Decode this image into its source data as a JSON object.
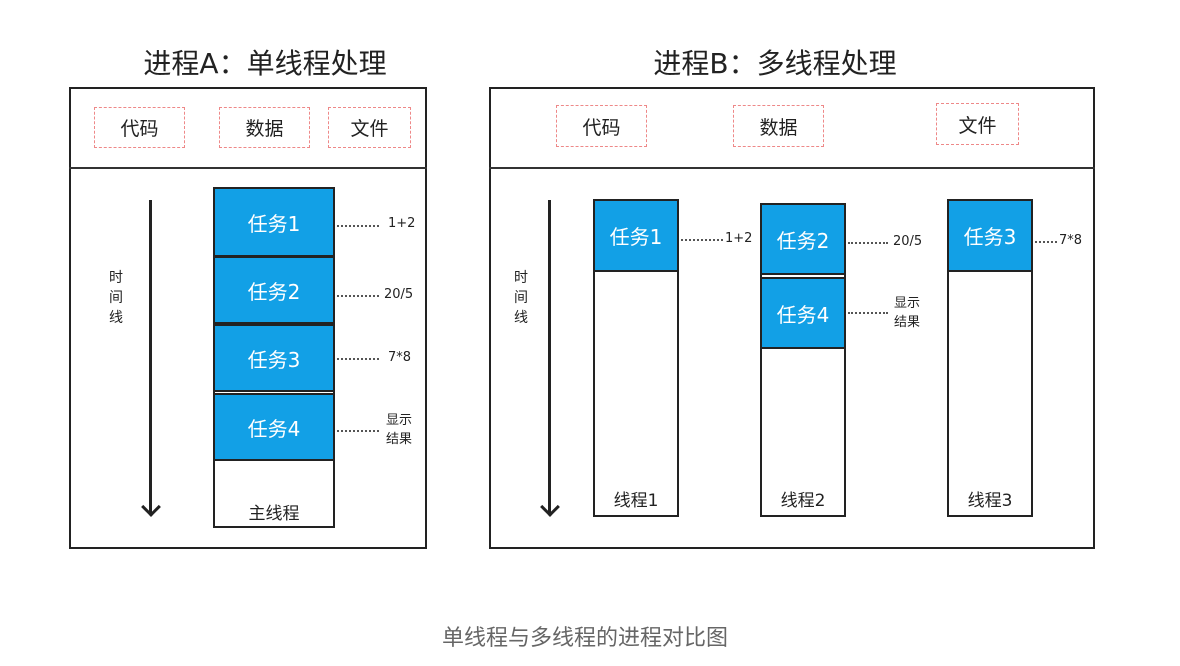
{
  "processA": {
    "title": "进程A：单线程处理",
    "segments": [
      "代码",
      "数据",
      "文件"
    ],
    "timeline_label": "时\n间\n线",
    "tasks": [
      {
        "label": "任务1",
        "note": "1+2"
      },
      {
        "label": "任务2",
        "note": "20/5"
      },
      {
        "label": "任务3",
        "note": "7*8"
      },
      {
        "label": "任务4",
        "note": "显示\n结果"
      }
    ],
    "thread_label": "主线程"
  },
  "processB": {
    "title": "进程B：多线程处理",
    "segments": [
      "代码",
      "数据",
      "文件"
    ],
    "timeline_label": "时\n间\n线",
    "threads": [
      {
        "label": "线程1",
        "tasks": [
          {
            "label": "任务1",
            "note": "1+2"
          }
        ]
      },
      {
        "label": "线程2",
        "tasks": [
          {
            "label": "任务2",
            "note": "20/5"
          },
          {
            "label": "任务4",
            "note": "显示\n结果"
          }
        ]
      },
      {
        "label": "线程3",
        "tasks": [
          {
            "label": "任务3",
            "note": "7*8"
          }
        ]
      }
    ]
  },
  "caption": "单线程与多线程的进程对比图",
  "colors": {
    "task": "#12a0e6",
    "segment_border": "#ee8888"
  }
}
